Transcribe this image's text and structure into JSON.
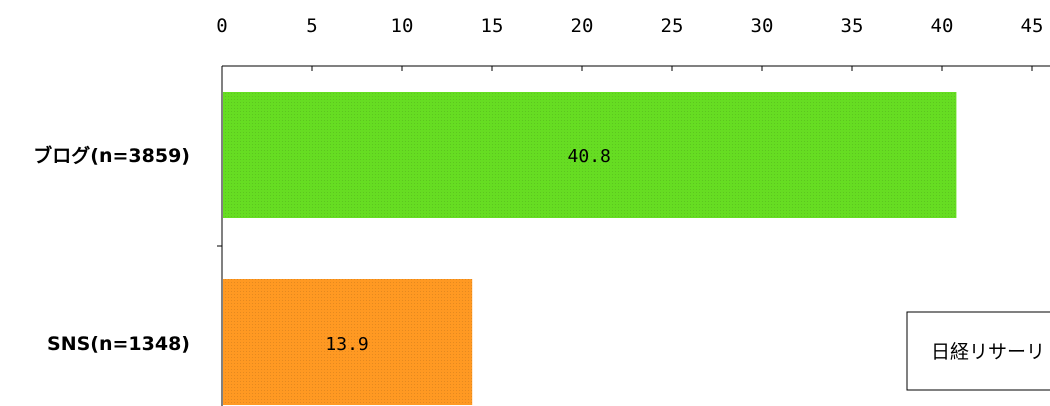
{
  "chart_data": {
    "type": "bar",
    "orientation": "horizontal",
    "categories": [
      "ブログ(n=3859)",
      "SNS(n=1348)"
    ],
    "values": [
      40.8,
      13.9
    ],
    "value_labels": [
      "40.8",
      "13.9"
    ],
    "colors": [
      "#66dd22",
      "#ff9922"
    ],
    "xlim": [
      0,
      45
    ],
    "xticks": [
      0,
      5,
      10,
      15,
      20,
      25,
      30,
      35,
      40,
      45
    ],
    "axis_position": "top",
    "grid": false,
    "title": "",
    "xlabel": "",
    "ylabel": ""
  },
  "source_note": "日経リサーリ"
}
